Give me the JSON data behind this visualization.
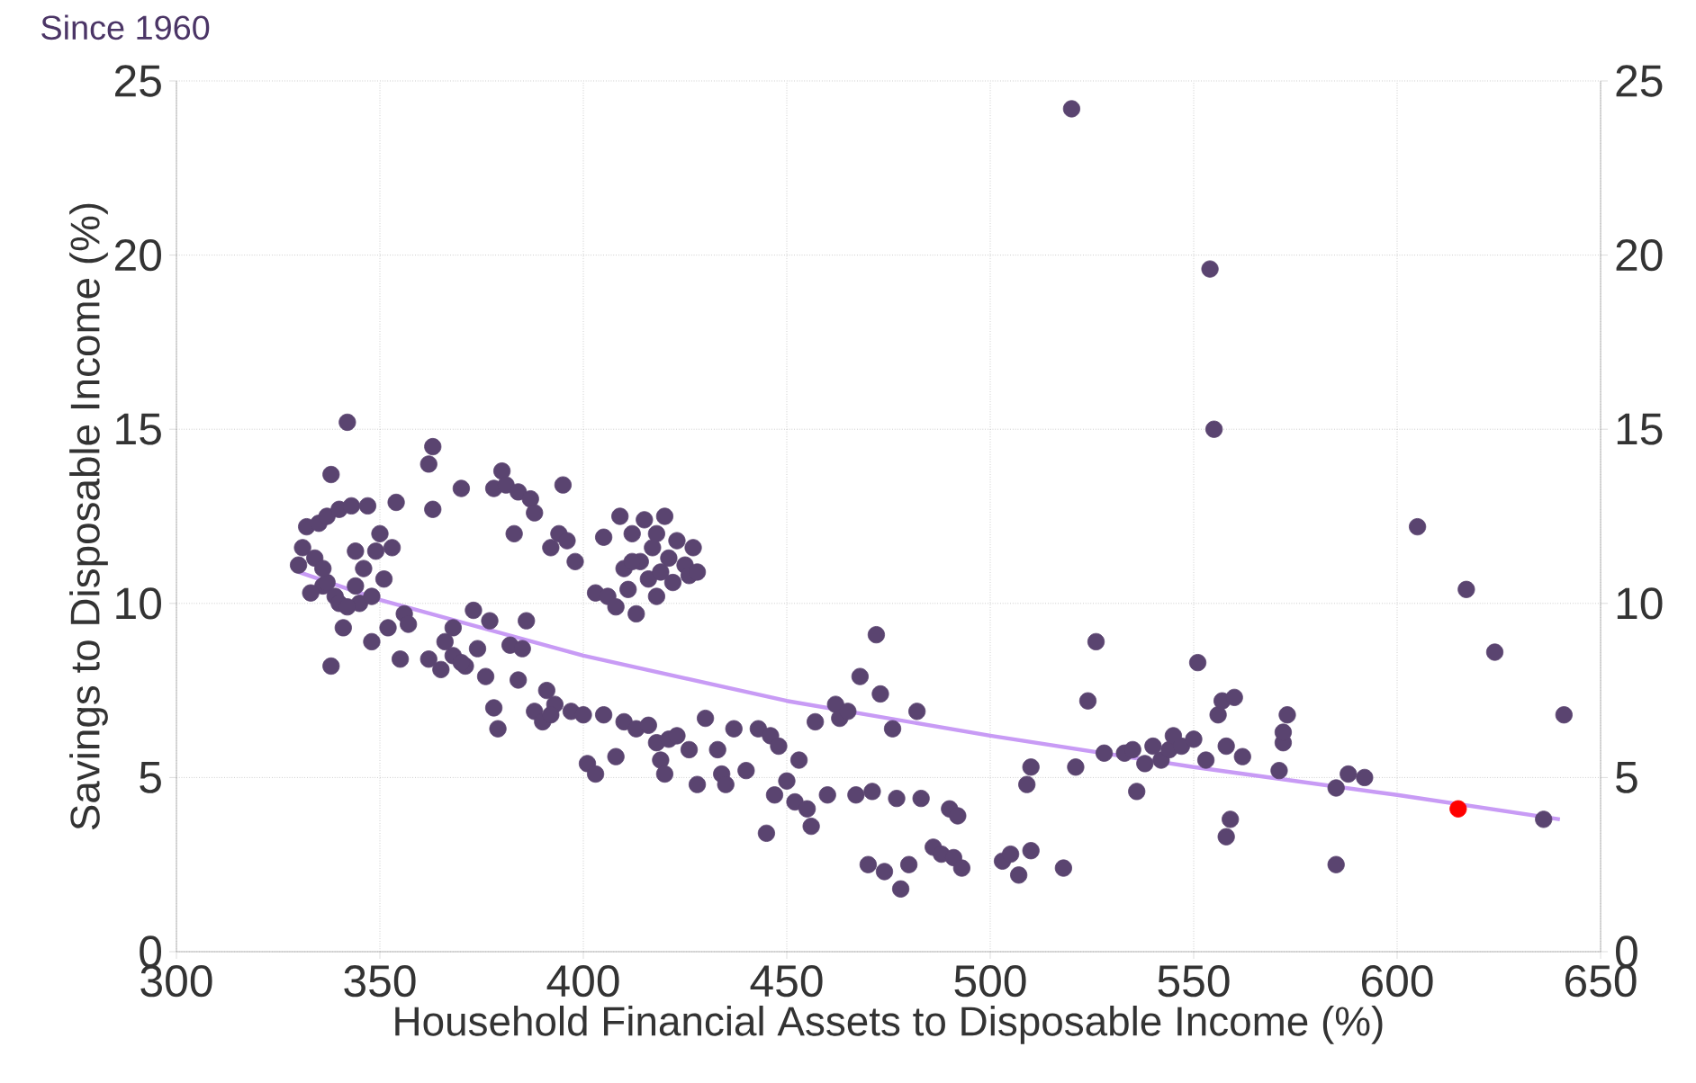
{
  "chart_data": {
    "type": "scatter",
    "title": "Since 1960",
    "xlabel": "Household Financial Assets to Disposable Income (%)",
    "ylabel": "Savings to Disposable Income (%)",
    "xlim": [
      300,
      650
    ],
    "xticks": [
      300,
      350,
      400,
      450,
      500,
      550,
      600,
      650
    ],
    "ylim": [
      0,
      25
    ],
    "yticks": [
      0,
      5,
      10,
      15,
      20,
      25
    ],
    "y2lim": [
      0,
      25
    ],
    "y2ticks": [
      0,
      5,
      10,
      15,
      20,
      25
    ],
    "grid": true,
    "marker": "circle",
    "series": [
      {
        "color": "#5a4470",
        "x": [
          330,
          331,
          332,
          334,
          335,
          336,
          337,
          338,
          338,
          339,
          340,
          341,
          342,
          343,
          344,
          345,
          346,
          347,
          348,
          349,
          350,
          351,
          352,
          353,
          354,
          355,
          356,
          357,
          333,
          340,
          342,
          337,
          344,
          348,
          336,
          362,
          363,
          363,
          362,
          365,
          366,
          368,
          370,
          371,
          373,
          374,
          376,
          377,
          378,
          378,
          379,
          380,
          381,
          382,
          383,
          384,
          385,
          386,
          387,
          388,
          388,
          390,
          391,
          392,
          393,
          394,
          395,
          396,
          397,
          398,
          400,
          370,
          368,
          384,
          392,
          403,
          405,
          406,
          408,
          409,
          410,
          411,
          412,
          413,
          414,
          415,
          416,
          417,
          418,
          419,
          420,
          421,
          422,
          423,
          425,
          426,
          427,
          428,
          412,
          418,
          401,
          403,
          405,
          408,
          410,
          413,
          416,
          418,
          419,
          420,
          421,
          423,
          426,
          428,
          430,
          433,
          434,
          435,
          437,
          440,
          443,
          445,
          446,
          447,
          448,
          450,
          452,
          453,
          455,
          456,
          457,
          460,
          462,
          463,
          465,
          467,
          468,
          470,
          471,
          472,
          473,
          474,
          476,
          477,
          478,
          480,
          482,
          483,
          486,
          488,
          490,
          491,
          492,
          493,
          503,
          505,
          507,
          509,
          510,
          510,
          518,
          520,
          521,
          524,
          526,
          528,
          533,
          535,
          536,
          538,
          540,
          542,
          544,
          545,
          547,
          550,
          551,
          553,
          554,
          555,
          556,
          557,
          558,
          559,
          560,
          558,
          562,
          571,
          572,
          572,
          573,
          585,
          585,
          588,
          592,
          605,
          617,
          624,
          636,
          641
        ],
        "values": [
          11.1,
          11.6,
          12.2,
          11.3,
          12.3,
          10.5,
          12.5,
          13.7,
          8.2,
          10.2,
          12.7,
          9.3,
          15.2,
          12.8,
          11.5,
          10.0,
          11.0,
          12.8,
          8.9,
          11.5,
          12.0,
          10.7,
          9.3,
          11.6,
          12.9,
          8.4,
          9.7,
          9.4,
          10.3,
          10.0,
          9.9,
          10.6,
          10.5,
          10.2,
          11.0,
          14.0,
          14.5,
          12.7,
          8.4,
          8.1,
          8.9,
          8.5,
          13.3,
          8.2,
          9.8,
          8.7,
          7.9,
          9.5,
          13.3,
          7.0,
          6.4,
          13.8,
          13.4,
          8.8,
          12.0,
          13.2,
          8.7,
          9.5,
          13.0,
          12.6,
          6.9,
          6.6,
          7.5,
          11.6,
          7.1,
          12.0,
          13.4,
          11.8,
          6.9,
          11.2,
          6.8,
          8.3,
          9.3,
          7.8,
          6.8,
          10.3,
          11.9,
          10.2,
          9.9,
          12.5,
          11.0,
          10.4,
          12.0,
          9.7,
          11.2,
          12.4,
          10.7,
          11.6,
          12.0,
          10.9,
          12.5,
          11.3,
          10.6,
          11.8,
          11.1,
          10.8,
          11.6,
          10.9,
          11.2,
          10.2,
          5.4,
          5.1,
          6.8,
          5.6,
          6.6,
          6.4,
          6.5,
          6.0,
          5.5,
          5.1,
          6.1,
          6.2,
          5.8,
          4.8,
          6.7,
          5.8,
          5.1,
          4.8,
          6.4,
          5.2,
          6.4,
          3.4,
          6.2,
          4.5,
          5.9,
          4.9,
          4.3,
          5.5,
          4.1,
          3.6,
          6.6,
          4.5,
          7.1,
          6.7,
          6.9,
          4.5,
          7.9,
          2.5,
          4.6,
          9.1,
          7.4,
          2.3,
          6.4,
          4.4,
          1.8,
          2.5,
          6.9,
          4.4,
          3.0,
          2.8,
          4.1,
          2.7,
          3.9,
          2.4,
          2.6,
          2.8,
          2.2,
          4.8,
          5.3,
          2.9,
          2.4,
          24.2,
          5.3,
          7.2,
          8.9,
          5.7,
          5.7,
          5.8,
          4.6,
          5.4,
          5.9,
          5.5,
          5.8,
          6.2,
          5.9,
          6.1,
          8.3,
          5.5,
          19.6,
          15.0,
          6.8,
          7.2,
          5.9,
          3.8,
          7.3,
          3.3,
          5.6,
          5.2,
          6.0,
          6.3,
          6.8,
          4.7,
          2.5,
          5.1,
          5.0,
          12.2,
          10.4,
          8.6,
          3.8,
          6.8
        ]
      },
      {
        "type": "line",
        "color": "#c89bf5",
        "marker": "none",
        "x": [
          330,
          350,
          400,
          450,
          500,
          550,
          600,
          640
        ],
        "values": [
          10.9,
          10.1,
          8.5,
          7.2,
          6.2,
          5.3,
          4.5,
          3.8
        ]
      },
      {
        "color": "#ff0000",
        "x": [
          615
        ],
        "values": [
          4.1
        ]
      }
    ]
  }
}
